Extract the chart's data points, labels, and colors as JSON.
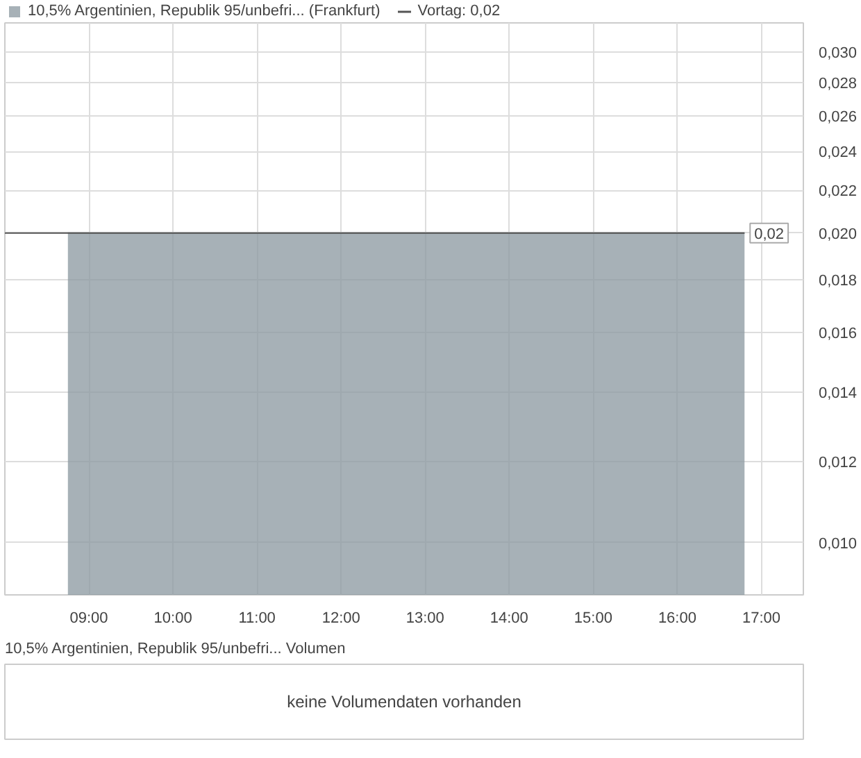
{
  "chart_data": [
    {
      "type": "area",
      "x": [
        8.75,
        16.8
      ],
      "series": [
        {
          "name": "10,5% Argentinien, Republik 95/unbefri... (Frankfurt)",
          "color": "#8a979f",
          "values": [
            0.02,
            0.02
          ]
        }
      ],
      "ref_lines": [
        {
          "axis": "y",
          "value": 0.02,
          "label": "Vortag: 0,02",
          "color": "#555555"
        }
      ],
      "annotations": [
        {
          "text": "0,02",
          "x": 16.8,
          "y": 0.02
        }
      ],
      "log": "y",
      "ylim": [
        0.0089,
        0.032
      ],
      "yticks": [
        {
          "value": 0.01,
          "label": "0,010"
        },
        {
          "value": 0.012,
          "label": "0,012"
        },
        {
          "value": 0.014,
          "label": "0,014"
        },
        {
          "value": 0.016,
          "label": "0,016"
        },
        {
          "value": 0.018,
          "label": "0,018"
        },
        {
          "value": 0.02,
          "label": "0,020"
        },
        {
          "value": 0.022,
          "label": "0,022"
        },
        {
          "value": 0.024,
          "label": "0,024"
        },
        {
          "value": 0.026,
          "label": "0,026"
        },
        {
          "value": 0.028,
          "label": "0,028"
        },
        {
          "value": 0.03,
          "label": "0,030"
        }
      ],
      "xlim": [
        8.0,
        17.5
      ],
      "xticks": [
        {
          "value": 9,
          "label": "09:00"
        },
        {
          "value": 10,
          "label": "10:00"
        },
        {
          "value": 11,
          "label": "11:00"
        },
        {
          "value": 12,
          "label": "12:00"
        },
        {
          "value": 13,
          "label": "13:00"
        },
        {
          "value": 14,
          "label": "14:00"
        },
        {
          "value": 15,
          "label": "15:00"
        },
        {
          "value": 16,
          "label": "16:00"
        },
        {
          "value": 17,
          "label": "17:00"
        }
      ],
      "grid": true,
      "legend": "top left"
    },
    {
      "type": "other",
      "title": "10,5% Argentinien, Republik 95/unbefri... Volumen",
      "annotations": [
        "keine Volumendaten vorhanden"
      ]
    }
  ]
}
